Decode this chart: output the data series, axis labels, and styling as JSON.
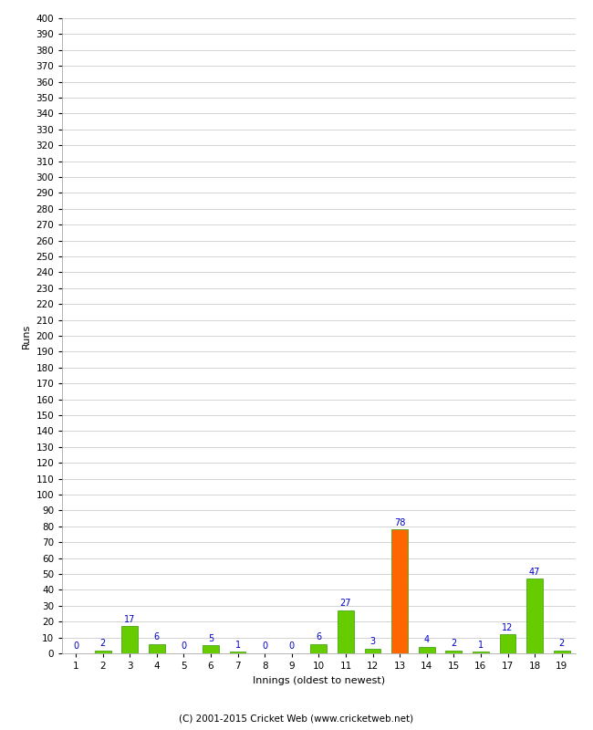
{
  "innings": [
    1,
    2,
    3,
    4,
    5,
    6,
    7,
    8,
    9,
    10,
    11,
    12,
    13,
    14,
    15,
    16,
    17,
    18,
    19
  ],
  "runs": [
    0,
    2,
    17,
    6,
    0,
    5,
    1,
    0,
    0,
    6,
    27,
    3,
    78,
    4,
    2,
    1,
    12,
    47,
    2
  ],
  "bar_colors": [
    "#66cc00",
    "#66cc00",
    "#66cc00",
    "#66cc00",
    "#66cc00",
    "#66cc00",
    "#66cc00",
    "#66cc00",
    "#66cc00",
    "#66cc00",
    "#66cc00",
    "#66cc00",
    "#ff6600",
    "#66cc00",
    "#66cc00",
    "#66cc00",
    "#66cc00",
    "#66cc00",
    "#66cc00"
  ],
  "xlabel": "Innings (oldest to newest)",
  "ylabel": "Runs",
  "ylim": [
    0,
    400
  ],
  "yticks": [
    0,
    10,
    20,
    30,
    40,
    50,
    60,
    70,
    80,
    90,
    100,
    110,
    120,
    130,
    140,
    150,
    160,
    170,
    180,
    190,
    200,
    210,
    220,
    230,
    240,
    250,
    260,
    270,
    280,
    290,
    300,
    310,
    320,
    330,
    340,
    350,
    360,
    370,
    380,
    390,
    400
  ],
  "footer": "(C) 2001-2015 Cricket Web (www.cricketweb.net)",
  "background_color": "#ffffff",
  "grid_color": "#cccccc",
  "label_color": "#0000cc",
  "bar_edge_color": "#339900",
  "bar_width": 0.6
}
